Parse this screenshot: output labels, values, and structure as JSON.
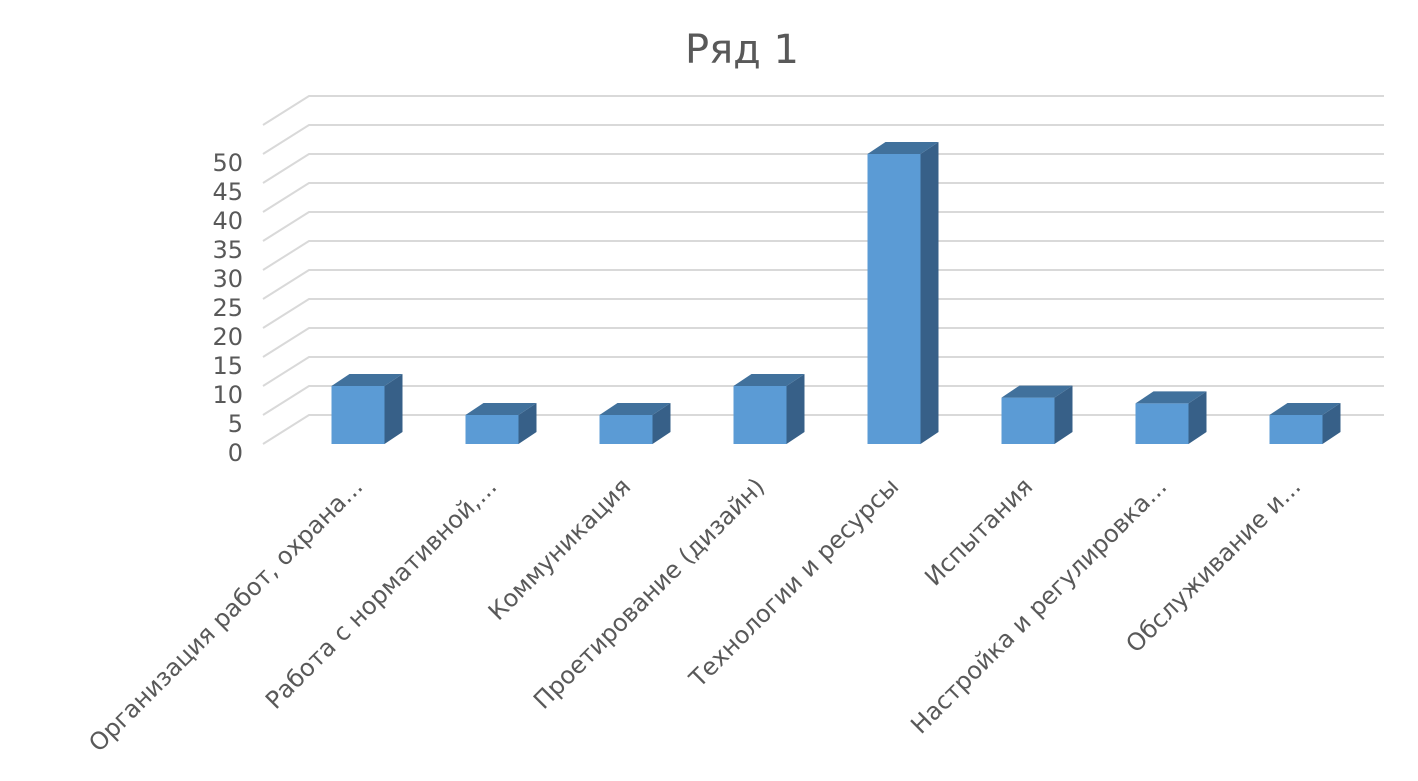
{
  "chart_data": {
    "type": "bar",
    "title": "Ряд 1",
    "xlabel": "",
    "ylabel": "",
    "ylim": [
      0,
      50
    ],
    "yticks": [
      0,
      5,
      10,
      15,
      20,
      25,
      30,
      35,
      40,
      45,
      50
    ],
    "grid": true,
    "legend": "none",
    "three_d": true,
    "categories": [
      "Организация работ, охрана...",
      "Работа с нормативной,...",
      "Коммуникация",
      "Проетирование (дизайн)",
      "Технологии и ресурсы",
      "Испытания",
      "Настройка и регулировка...",
      "Обслуживание и..."
    ],
    "series": [
      {
        "values": [
          10,
          5,
          5,
          10,
          50,
          8,
          7,
          5
        ]
      }
    ],
    "colors": {
      "front": "#5b9bd5",
      "top": "#41719c",
      "side": "#376088",
      "text": "#595959",
      "grid": "#d9d9d9"
    }
  }
}
